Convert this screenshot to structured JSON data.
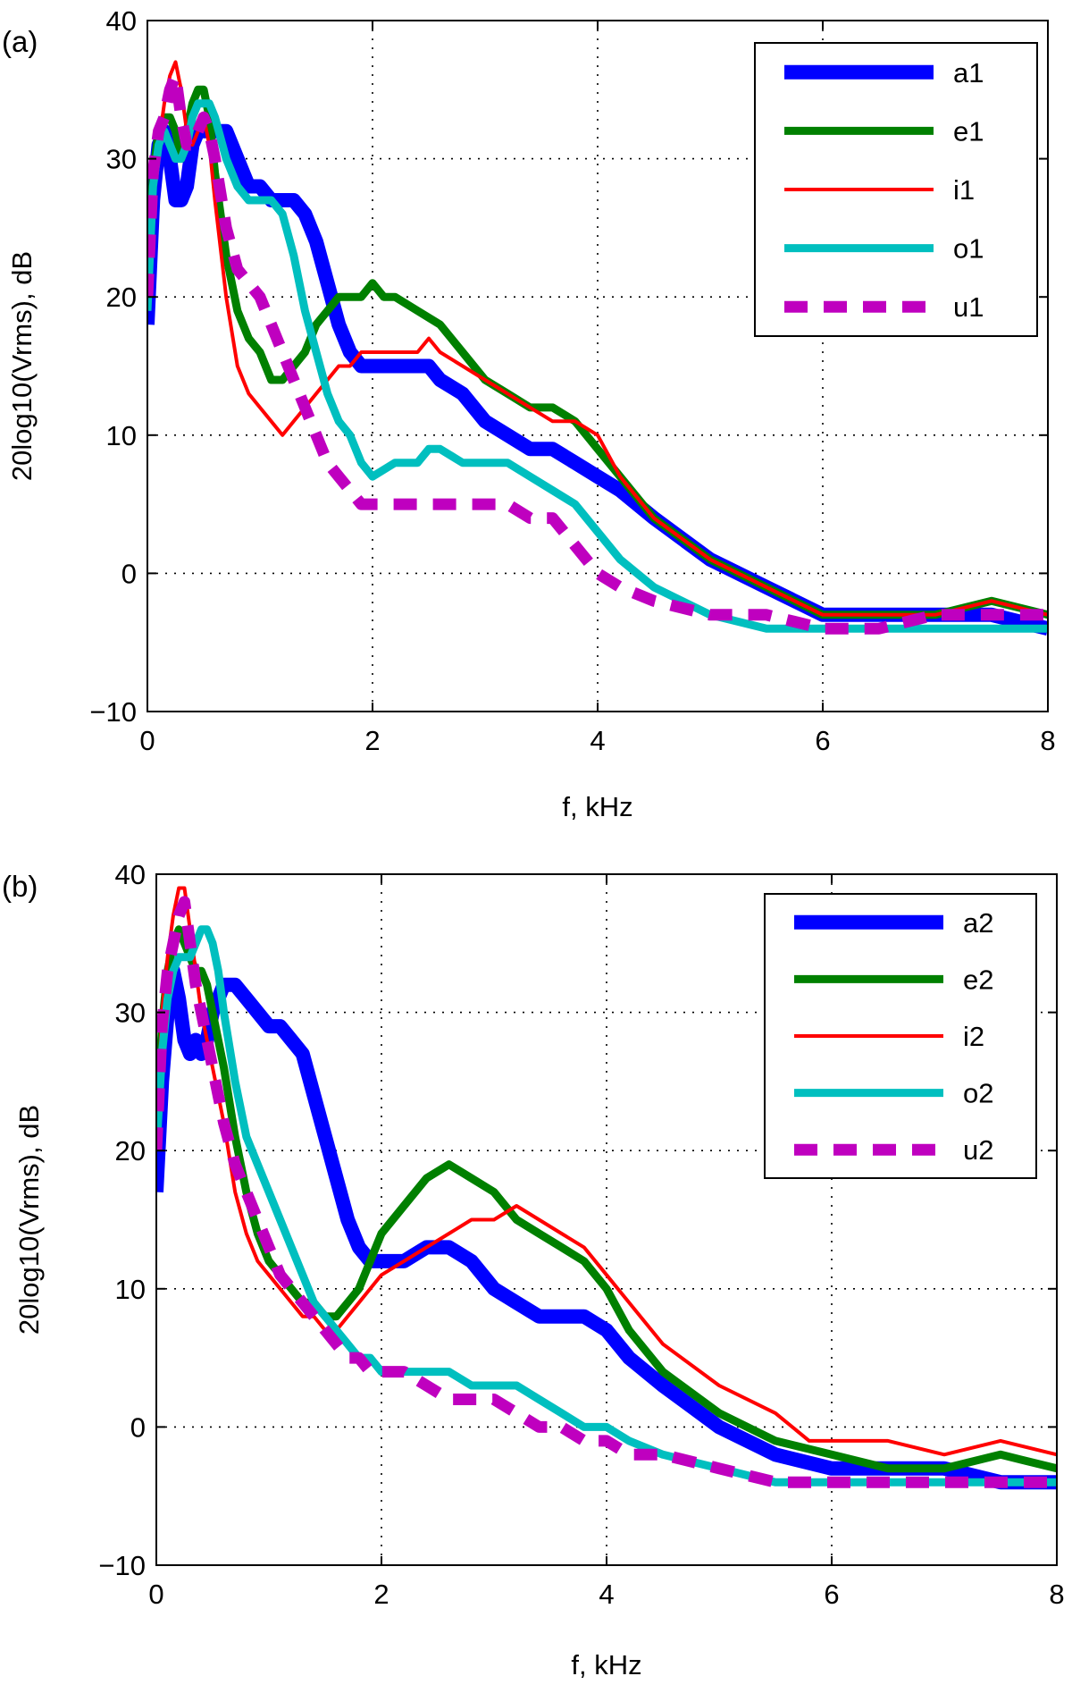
{
  "chart_data": [
    {
      "type": "line",
      "panel_label": "(a)",
      "xlabel": "f, kHz",
      "ylabel": "20log10(Vrms), dB",
      "xlim": [
        0,
        8
      ],
      "ylim": [
        -10,
        40
      ],
      "xticks": [
        0,
        2,
        4,
        6,
        8
      ],
      "yticks": [
        -10,
        0,
        10,
        20,
        30,
        40
      ],
      "grid": true,
      "legend_position": "top-right",
      "series": [
        {
          "name": "a1",
          "color": "#0000ff",
          "style": "thick",
          "x": [
            0,
            0.05,
            0.1,
            0.15,
            0.2,
            0.25,
            0.3,
            0.35,
            0.4,
            0.45,
            0.5,
            0.55,
            0.6,
            0.7,
            0.8,
            0.9,
            1.0,
            1.1,
            1.2,
            1.3,
            1.4,
            1.5,
            1.6,
            1.7,
            1.8,
            1.9,
            2.0,
            2.2,
            2.4,
            2.5,
            2.6,
            2.8,
            3.0,
            3.2,
            3.4,
            3.6,
            3.8,
            4.0,
            4.2,
            4.5,
            5.0,
            5.5,
            6.0,
            6.5,
            7.0,
            7.5,
            8.0
          ],
          "y": [
            18,
            27,
            31,
            32,
            30,
            27,
            27,
            28,
            31,
            32,
            32,
            32,
            32,
            32,
            30,
            28,
            28,
            27,
            27,
            27,
            26,
            24,
            21,
            18,
            16,
            15,
            15,
            15,
            15,
            15,
            14,
            13,
            11,
            10,
            9,
            9,
            8,
            7,
            6,
            4,
            1,
            -1,
            -3,
            -3,
            -3,
            -3,
            -4
          ]
        },
        {
          "name": "e1",
          "color": "#008000",
          "style": "medium",
          "x": [
            0,
            0.05,
            0.1,
            0.15,
            0.2,
            0.25,
            0.3,
            0.35,
            0.4,
            0.45,
            0.5,
            0.55,
            0.6,
            0.7,
            0.8,
            0.9,
            1.0,
            1.1,
            1.2,
            1.3,
            1.4,
            1.5,
            1.6,
            1.7,
            1.8,
            1.9,
            2.0,
            2.1,
            2.2,
            2.4,
            2.6,
            2.8,
            3.0,
            3.2,
            3.4,
            3.6,
            3.8,
            4.0,
            4.2,
            4.5,
            5.0,
            5.5,
            6.0,
            6.5,
            7.0,
            7.5,
            8.0
          ],
          "y": [
            20,
            29,
            32,
            33,
            33,
            32,
            30,
            32,
            34,
            35,
            35,
            33,
            29,
            23,
            19,
            17,
            16,
            14,
            14,
            15,
            16,
            18,
            19,
            20,
            20,
            20,
            21,
            20,
            20,
            19,
            18,
            16,
            14,
            13,
            12,
            12,
            11,
            9,
            7,
            4,
            1,
            -1,
            -3,
            -3,
            -3,
            -2,
            -3
          ]
        },
        {
          "name": "i1",
          "color": "#ff0000",
          "style": "thin",
          "x": [
            0,
            0.05,
            0.1,
            0.15,
            0.2,
            0.25,
            0.3,
            0.35,
            0.4,
            0.45,
            0.5,
            0.55,
            0.6,
            0.7,
            0.8,
            0.9,
            1.0,
            1.1,
            1.2,
            1.3,
            1.4,
            1.5,
            1.6,
            1.7,
            1.8,
            1.9,
            2.0,
            2.2,
            2.4,
            2.5,
            2.6,
            2.8,
            3.0,
            3.2,
            3.4,
            3.6,
            3.8,
            4.0,
            4.2,
            4.5,
            5.0,
            5.5,
            6.0,
            6.5,
            7.0,
            7.5,
            8.0
          ],
          "y": [
            20,
            27,
            31,
            34,
            36,
            37,
            35,
            32,
            31,
            32,
            33,
            31,
            27,
            20,
            15,
            13,
            12,
            11,
            10,
            11,
            12,
            13,
            14,
            15,
            15,
            16,
            16,
            16,
            16,
            17,
            16,
            15,
            14,
            13,
            12,
            11,
            11,
            10,
            7,
            4,
            1,
            -1,
            -3,
            -3,
            -3,
            -2,
            -3
          ]
        },
        {
          "name": "o1",
          "color": "#00bfbf",
          "style": "medium",
          "x": [
            0,
            0.05,
            0.1,
            0.15,
            0.2,
            0.25,
            0.3,
            0.35,
            0.4,
            0.45,
            0.5,
            0.55,
            0.6,
            0.7,
            0.8,
            0.9,
            1.0,
            1.1,
            1.2,
            1.3,
            1.4,
            1.5,
            1.6,
            1.7,
            1.8,
            1.9,
            2.0,
            2.2,
            2.4,
            2.5,
            2.6,
            2.8,
            3.0,
            3.2,
            3.4,
            3.6,
            3.8,
            4.0,
            4.2,
            4.5,
            5.0,
            5.5,
            6.0,
            6.5,
            7.0,
            7.5,
            8.0
          ],
          "y": [
            19,
            28,
            31,
            32,
            31,
            30,
            30,
            31,
            33,
            34,
            34,
            34,
            33,
            30,
            28,
            27,
            27,
            27,
            26,
            23,
            19,
            16,
            13,
            11,
            10,
            8,
            7,
            8,
            8,
            9,
            9,
            8,
            8,
            8,
            7,
            6,
            5,
            3,
            1,
            -1,
            -3,
            -4,
            -4,
            -4,
            -4,
            -4,
            -4
          ]
        },
        {
          "name": "u1",
          "color": "#bf00bf",
          "style": "dashed",
          "x": [
            0,
            0.05,
            0.1,
            0.15,
            0.2,
            0.25,
            0.3,
            0.35,
            0.4,
            0.45,
            0.5,
            0.55,
            0.6,
            0.7,
            0.8,
            0.9,
            1.0,
            1.1,
            1.2,
            1.3,
            1.4,
            1.5,
            1.6,
            1.7,
            1.8,
            1.9,
            2.0,
            2.2,
            2.4,
            2.6,
            2.8,
            3.0,
            3.2,
            3.4,
            3.6,
            3.8,
            4.0,
            4.2,
            4.5,
            5.0,
            5.5,
            6.0,
            6.5,
            7.0,
            7.5,
            8.0
          ],
          "y": [
            20,
            29,
            32,
            33,
            35,
            36,
            33,
            31,
            31,
            32,
            33,
            32,
            30,
            25,
            22,
            21,
            20,
            18,
            16,
            14,
            12,
            10,
            8,
            7,
            6,
            5,
            5,
            5,
            5,
            5,
            5,
            5,
            5,
            4,
            4,
            2,
            0,
            -1,
            -2,
            -3,
            -3,
            -4,
            -4,
            -3,
            -3,
            -3
          ]
        }
      ]
    },
    {
      "type": "line",
      "panel_label": "(b)",
      "xlabel": "f, kHz",
      "ylabel": "20log10(Vrms), dB",
      "xlim": [
        0,
        8
      ],
      "ylim": [
        -10,
        40
      ],
      "xticks": [
        0,
        2,
        4,
        6,
        8
      ],
      "yticks": [
        -10,
        0,
        10,
        20,
        30,
        40
      ],
      "grid": true,
      "legend_position": "top-right",
      "series": [
        {
          "name": "a2",
          "color": "#0000ff",
          "style": "thick",
          "x": [
            0,
            0.05,
            0.1,
            0.15,
            0.2,
            0.25,
            0.3,
            0.35,
            0.4,
            0.45,
            0.5,
            0.55,
            0.6,
            0.7,
            0.8,
            0.9,
            1.0,
            1.1,
            1.2,
            1.3,
            1.4,
            1.5,
            1.6,
            1.7,
            1.8,
            1.9,
            2.0,
            2.2,
            2.4,
            2.5,
            2.6,
            2.8,
            3.0,
            3.2,
            3.4,
            3.6,
            3.8,
            4.0,
            4.2,
            4.5,
            5.0,
            5.5,
            6.0,
            6.5,
            7.0,
            7.5,
            8.0
          ],
          "y": [
            17,
            25,
            30,
            33,
            31,
            28,
            27,
            28,
            27,
            28,
            30,
            31,
            32,
            32,
            31,
            30,
            29,
            29,
            28,
            27,
            24,
            21,
            18,
            15,
            13,
            12,
            12,
            12,
            13,
            13,
            13,
            12,
            10,
            9,
            8,
            8,
            8,
            7,
            5,
            3,
            0,
            -2,
            -3,
            -3,
            -3,
            -4,
            -4
          ]
        },
        {
          "name": "e2",
          "color": "#008000",
          "style": "medium",
          "x": [
            0,
            0.05,
            0.1,
            0.15,
            0.2,
            0.25,
            0.3,
            0.35,
            0.4,
            0.45,
            0.5,
            0.55,
            0.6,
            0.7,
            0.8,
            0.9,
            1.0,
            1.1,
            1.2,
            1.3,
            1.4,
            1.5,
            1.6,
            1.7,
            1.8,
            1.9,
            2.0,
            2.2,
            2.4,
            2.6,
            2.8,
            3.0,
            3.2,
            3.4,
            3.6,
            3.8,
            4.0,
            4.2,
            4.5,
            5.0,
            5.5,
            6.0,
            6.5,
            7.0,
            7.5,
            8.0
          ],
          "y": [
            21,
            29,
            33,
            35,
            36,
            35,
            34,
            33,
            33,
            32,
            30,
            28,
            26,
            21,
            17,
            14,
            12,
            11,
            10,
            9,
            9,
            8,
            8,
            9,
            10,
            12,
            14,
            16,
            18,
            19,
            18,
            17,
            15,
            14,
            13,
            12,
            10,
            7,
            4,
            1,
            -1,
            -2,
            -3,
            -3,
            -2,
            -3
          ]
        },
        {
          "name": "i2",
          "color": "#ff0000",
          "style": "thin",
          "x": [
            0,
            0.05,
            0.1,
            0.15,
            0.2,
            0.25,
            0.3,
            0.35,
            0.4,
            0.45,
            0.5,
            0.55,
            0.6,
            0.7,
            0.8,
            0.9,
            1.0,
            1.1,
            1.2,
            1.3,
            1.4,
            1.5,
            1.6,
            1.7,
            1.8,
            1.9,
            2.0,
            2.2,
            2.4,
            2.6,
            2.8,
            3.0,
            3.2,
            3.4,
            3.6,
            3.8,
            4.0,
            4.2,
            4.5,
            5.0,
            5.5,
            5.8,
            6.0,
            6.5,
            7.0,
            7.5,
            8.0
          ],
          "y": [
            21,
            30,
            34,
            37,
            39,
            39,
            36,
            33,
            30,
            28,
            26,
            24,
            22,
            17,
            14,
            12,
            11,
            10,
            9,
            8,
            8,
            7,
            7,
            8,
            9,
            10,
            11,
            12,
            13,
            14,
            15,
            15,
            16,
            15,
            14,
            13,
            11,
            9,
            6,
            3,
            1,
            -1,
            -1,
            -1,
            -2,
            -1,
            -2
          ]
        },
        {
          "name": "o2",
          "color": "#00bfbf",
          "style": "medium",
          "x": [
            0,
            0.05,
            0.1,
            0.15,
            0.2,
            0.25,
            0.3,
            0.35,
            0.4,
            0.45,
            0.5,
            0.55,
            0.6,
            0.7,
            0.8,
            0.9,
            1.0,
            1.1,
            1.2,
            1.3,
            1.4,
            1.5,
            1.6,
            1.7,
            1.8,
            1.9,
            2.0,
            2.2,
            2.4,
            2.6,
            2.8,
            3.0,
            3.2,
            3.4,
            3.6,
            3.8,
            4.0,
            4.2,
            4.5,
            5.0,
            5.5,
            6.0,
            6.5,
            7.0,
            7.5,
            8.0
          ],
          "y": [
            20,
            27,
            31,
            33,
            34,
            34,
            34,
            35,
            36,
            36,
            35,
            33,
            30,
            25,
            21,
            19,
            17,
            15,
            13,
            11,
            9,
            8,
            7,
            6,
            5,
            5,
            4,
            4,
            4,
            4,
            3,
            3,
            3,
            2,
            1,
            0,
            0,
            -1,
            -2,
            -3,
            -4,
            -4,
            -4,
            -4,
            -4,
            -4
          ]
        },
        {
          "name": "u2",
          "color": "#bf00bf",
          "style": "dashed",
          "x": [
            0,
            0.05,
            0.1,
            0.15,
            0.2,
            0.25,
            0.3,
            0.35,
            0.4,
            0.45,
            0.5,
            0.55,
            0.6,
            0.7,
            0.8,
            0.9,
            1.0,
            1.1,
            1.2,
            1.3,
            1.4,
            1.5,
            1.6,
            1.7,
            1.8,
            1.9,
            2.0,
            2.2,
            2.4,
            2.6,
            2.8,
            3.0,
            3.2,
            3.4,
            3.6,
            3.8,
            4.0,
            4.2,
            4.5,
            5.0,
            5.5,
            6.0,
            6.5,
            7.0,
            7.5,
            8.0
          ],
          "y": [
            20,
            29,
            33,
            35,
            37,
            38,
            35,
            32,
            30,
            28,
            26,
            24,
            22,
            19,
            17,
            15,
            13,
            11,
            10,
            9,
            8,
            7,
            6,
            5,
            5,
            4,
            4,
            4,
            3,
            2,
            2,
            2,
            1,
            0,
            0,
            -1,
            -1,
            -2,
            -2,
            -3,
            -4,
            -4,
            -4,
            -4,
            -4,
            -4
          ]
        }
      ]
    }
  ]
}
